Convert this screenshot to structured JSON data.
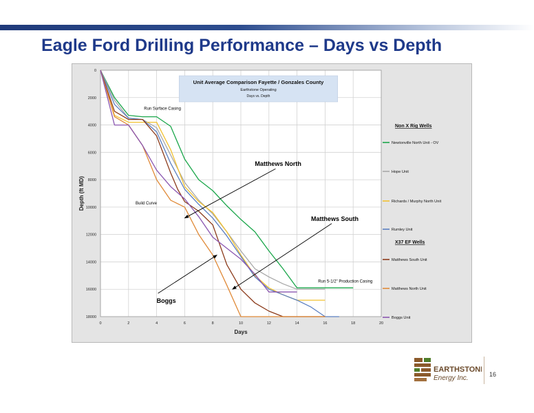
{
  "slide": {
    "title": "Eagle Ford Drilling Performance – Days vs Depth",
    "page_number": "16"
  },
  "logo": {
    "name": "EARTHSTONE",
    "subtitle": "Energy Inc."
  },
  "colors": {
    "title": "#1f3a8a",
    "plot_background": "#ffffff",
    "frame_background": "#e4e4e4",
    "logo_brown": "#8b5a2b",
    "logo_green": "#4f7d2a"
  },
  "chart_data": {
    "type": "line",
    "title": "Unit Average Comparison Fayette / Gonzales County",
    "subtitle": "Earthstone Operating",
    "subtitle2": "Days vs. Depth",
    "xlabel": "Days",
    "ylabel": "Depth (ft MD)",
    "xlim": [
      0,
      20
    ],
    "ylim": [
      0,
      18000
    ],
    "y_inverted": true,
    "x_ticks": [
      0,
      2,
      4,
      6,
      8,
      10,
      12,
      14,
      16,
      18,
      20
    ],
    "y_ticks": [
      0,
      2000,
      4000,
      6000,
      8000,
      10000,
      12000,
      14000,
      16000,
      18000
    ],
    "grid": true,
    "legend_position": "right",
    "legend_headers": [
      "Non X Rig Wells",
      "X37 EF Wells"
    ],
    "series": [
      {
        "name": "Newtonville North Unit - OV",
        "group": "Non X Rig Wells",
        "color": "#1aa64a",
        "x": [
          0,
          1,
          2,
          3,
          4,
          5,
          6,
          7,
          8,
          9,
          10,
          11,
          12,
          13,
          14,
          15,
          16,
          17,
          18
        ],
        "y": [
          0,
          2000,
          3300,
          3400,
          3400,
          4100,
          6500,
          8000,
          8800,
          9900,
          10900,
          11800,
          13200,
          14500,
          15900,
          15900,
          15900,
          15900,
          15900
        ]
      },
      {
        "name": "Hope Unit",
        "group": "Non X Rig Wells",
        "color": "#a8a8a8",
        "x": [
          0,
          1,
          2,
          3,
          4,
          5,
          6,
          7,
          8,
          9,
          10,
          11,
          12,
          13,
          14,
          15,
          16
        ],
        "y": [
          0,
          2200,
          3500,
          3600,
          4200,
          6200,
          8200,
          9500,
          10500,
          11800,
          13200,
          14500,
          15100,
          15600,
          16000,
          16000,
          16000
        ]
      },
      {
        "name": "Richards / Murphy North Unit",
        "group": "Non X Rig Wells",
        "color": "#f2c230",
        "x": [
          0,
          1,
          2,
          3,
          4,
          5,
          6,
          7,
          8,
          9,
          10,
          11,
          12,
          13,
          14,
          15,
          16
        ],
        "y": [
          0,
          3300,
          3800,
          3800,
          3800,
          5800,
          8500,
          9600,
          10400,
          11800,
          13500,
          15000,
          15900,
          16400,
          16800,
          16800,
          16800
        ]
      },
      {
        "name": "Rumley Unit",
        "group": "Non X Rig Wells",
        "color": "#5b7fc1",
        "x": [
          0,
          1,
          2,
          3,
          4,
          5,
          6,
          7,
          8,
          9,
          10,
          11,
          12,
          13,
          14,
          15,
          16,
          17
        ],
        "y": [
          0,
          2500,
          3500,
          3600,
          4500,
          6800,
          8700,
          9800,
          10800,
          12100,
          13600,
          15100,
          16000,
          16400,
          16800,
          17300,
          18000,
          18000
        ]
      },
      {
        "name": "Matthews South Unit",
        "group": "X37 EF Wells",
        "color": "#8b3a1a",
        "x": [
          0,
          1,
          2,
          3,
          4,
          5,
          5.5,
          6,
          7,
          8,
          9,
          10,
          11,
          12,
          13,
          14,
          15,
          16
        ],
        "y": [
          0,
          3000,
          3600,
          3600,
          4800,
          7500,
          8700,
          9600,
          10300,
          11300,
          14200,
          16000,
          17000,
          17600,
          18000,
          18000,
          18000,
          18000
        ]
      },
      {
        "name": "Matthews North Unit",
        "group": "X37 EF Wells",
        "color": "#e08a38",
        "x": [
          0,
          1,
          2,
          3,
          4,
          5,
          6,
          7,
          8,
          9,
          10,
          11,
          12,
          13,
          14,
          15,
          16
        ],
        "y": [
          0,
          3400,
          4000,
          5500,
          8000,
          9500,
          10000,
          12000,
          13500,
          15700,
          18000,
          18000,
          18000,
          18000,
          18000,
          18000,
          18000
        ]
      },
      {
        "name": "Boggs Unit",
        "group": "X37 EF Wells",
        "color": "#8a56b0",
        "x": [
          0,
          1,
          2,
          3,
          4,
          5,
          6,
          7,
          8,
          9,
          10,
          11,
          12,
          13,
          14
        ],
        "y": [
          0,
          4000,
          4000,
          5500,
          7300,
          8500,
          9400,
          10700,
          12200,
          13000,
          13800,
          14900,
          16200,
          16200,
          16200
        ]
      }
    ],
    "annotations": [
      {
        "text": "Run Surface Casing",
        "x": 3.1,
        "y": 2900
      },
      {
        "text": "Build Curve",
        "x": 2.5,
        "y": 9800
      },
      {
        "text": "Run 5-1/2\" Production Casing",
        "x": 15.5,
        "y": 15500
      },
      {
        "text": "Matthews North",
        "x": 11,
        "y": 7000,
        "bold": true,
        "arrow_to": {
          "x": 6,
          "y": 10800
        }
      },
      {
        "text": "Matthews South",
        "x": 15,
        "y": 11000,
        "bold": true,
        "arrow_to": {
          "x": 9.4,
          "y": 16000
        }
      },
      {
        "text": "Boggs",
        "x": 4,
        "y": 17000,
        "bold": true,
        "arrow_to": {
          "x": 8.3,
          "y": 13500
        }
      }
    ]
  }
}
